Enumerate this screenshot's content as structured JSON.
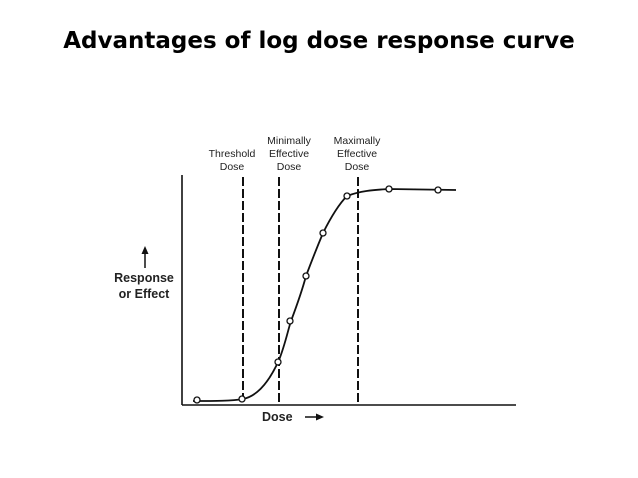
{
  "slide": {
    "title": "Advantages of log dose response curve"
  },
  "diagram": {
    "y_axis_label": [
      "Response",
      "or Effect"
    ],
    "x_axis_label": "Dose",
    "markers": [
      {
        "label_lines": [
          "Threshold",
          "Dose"
        ]
      },
      {
        "label_lines": [
          "Minimally",
          "Effective",
          "Dose"
        ]
      },
      {
        "label_lines": [
          "Maximally",
          "Effective",
          "Dose"
        ]
      }
    ],
    "curve_shape": "sigmoid",
    "curve_point_count": 9,
    "colors": {
      "line": "#111111",
      "point_fill": "#ffffff"
    }
  }
}
